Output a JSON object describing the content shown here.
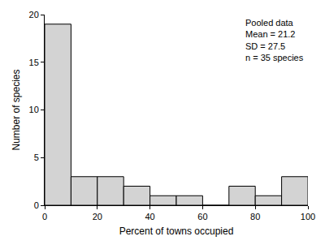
{
  "chart_data": {
    "type": "histogram",
    "bins": [
      0,
      10,
      20,
      30,
      40,
      50,
      60,
      70,
      80,
      90,
      100
    ],
    "counts": [
      19,
      3,
      3,
      2,
      1,
      1,
      0,
      2,
      1,
      3
    ],
    "color": "#d3d3d3",
    "xlabel": "Percent of towns occupied",
    "ylabel": "Number of species",
    "xlim": [
      0,
      100
    ],
    "xticks": [
      0,
      20,
      40,
      60,
      80,
      100
    ],
    "ylim": [
      0,
      20
    ],
    "yticks": [
      0,
      5,
      10,
      15,
      20
    ],
    "grid": false,
    "annotations": [
      "Pooled data",
      "Mean = 21.2",
      "SD = 27.5",
      "n = 35 species"
    ]
  }
}
